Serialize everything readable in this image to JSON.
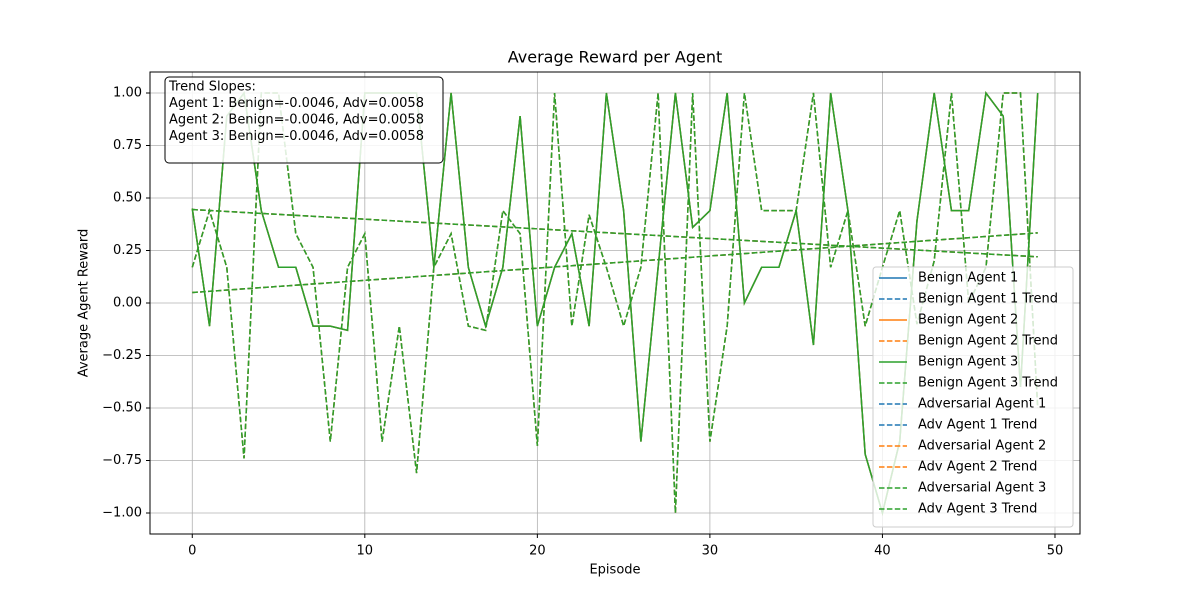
{
  "chart_data": {
    "type": "line",
    "title": "Average Reward per Agent",
    "x_label": "Episode",
    "y_label": "Average Agent Reward",
    "x": [
      0,
      1,
      2,
      3,
      4,
      5,
      6,
      7,
      8,
      9,
      10,
      11,
      12,
      13,
      14,
      15,
      16,
      17,
      18,
      19,
      20,
      21,
      22,
      23,
      24,
      25,
      26,
      27,
      28,
      29,
      30,
      31,
      32,
      33,
      34,
      35,
      36,
      37,
      38,
      39,
      40,
      41,
      42,
      43,
      44,
      45,
      46,
      47,
      48,
      49
    ],
    "xlim": [
      -2.45,
      51.45
    ],
    "xticks": [
      0,
      10,
      20,
      30,
      40,
      50
    ],
    "ylim": [
      -1.1,
      1.1
    ],
    "yticks": [
      {
        "value": -1,
        "label": "−1.00"
      },
      {
        "value": -0.75,
        "label": "−0.75"
      },
      {
        "value": -0.5,
        "label": "−0.50"
      },
      {
        "value": -0.25,
        "label": "−0.25"
      },
      {
        "value": 0,
        "label": "0.00"
      },
      {
        "value": 0.25,
        "label": "0.25"
      },
      {
        "value": 0.5,
        "label": "0.50"
      },
      {
        "value": 0.75,
        "label": "0.75"
      },
      {
        "value": 1,
        "label": "1.00"
      }
    ],
    "grid": true,
    "legend": "lower right",
    "annotation": [
      "Trend Slopes:",
      "Agent 1: Benign=-0.0046, Adv=0.0058",
      "Agent 2: Benign=-0.0046, Adv=0.0058",
      "Agent 3: Benign=-0.0046, Adv=0.0058"
    ],
    "series": [
      {
        "name": "Benign Agent 1",
        "color": "#1f77b4",
        "style": "solid",
        "values": [
          0.45,
          -0.11,
          0.89,
          1.0,
          0.44,
          0.17,
          0.17,
          -0.11,
          -0.11,
          -0.13,
          1.0,
          1.0,
          1.0,
          1.0,
          0.17,
          1.0,
          0.17,
          -0.11,
          0.17,
          0.89,
          -0.11,
          0.17,
          0.33,
          -0.11,
          1.0,
          0.44,
          -0.66,
          0.17,
          1.0,
          0.36,
          0.44,
          1.0,
          0.0,
          0.17,
          0.17,
          0.44,
          -0.2,
          1.0,
          0.44,
          -0.72,
          -1.0,
          -0.66,
          0.39,
          1.0,
          0.44,
          0.44,
          1.0,
          0.89,
          -0.4,
          1.0
        ]
      },
      {
        "name": "Benign Agent 1 Trend",
        "color": "#1f77b4",
        "style": "dashed",
        "x": [
          0,
          49
        ],
        "values": [
          0.445,
          0.22
        ]
      },
      {
        "name": "Benign Agent 2",
        "color": "#ff7f0e",
        "style": "solid",
        "values": [
          0.45,
          -0.11,
          0.89,
          1.0,
          0.44,
          0.17,
          0.17,
          -0.11,
          -0.11,
          -0.13,
          1.0,
          1.0,
          1.0,
          1.0,
          0.17,
          1.0,
          0.17,
          -0.11,
          0.17,
          0.89,
          -0.11,
          0.17,
          0.33,
          -0.11,
          1.0,
          0.44,
          -0.66,
          0.17,
          1.0,
          0.36,
          0.44,
          1.0,
          0.0,
          0.17,
          0.17,
          0.44,
          -0.2,
          1.0,
          0.44,
          -0.72,
          -1.0,
          -0.66,
          0.39,
          1.0,
          0.44,
          0.44,
          1.0,
          0.89,
          -0.4,
          1.0
        ]
      },
      {
        "name": "Benign Agent 2 Trend",
        "color": "#ff7f0e",
        "style": "dashed",
        "x": [
          0,
          49
        ],
        "values": [
          0.445,
          0.22
        ]
      },
      {
        "name": "Benign Agent 3",
        "color": "#2ca02c",
        "style": "solid",
        "values": [
          0.45,
          -0.11,
          0.89,
          1.0,
          0.44,
          0.17,
          0.17,
          -0.11,
          -0.11,
          -0.13,
          1.0,
          1.0,
          1.0,
          1.0,
          0.17,
          1.0,
          0.17,
          -0.11,
          0.17,
          0.89,
          -0.11,
          0.17,
          0.33,
          -0.11,
          1.0,
          0.44,
          -0.66,
          0.17,
          1.0,
          0.36,
          0.44,
          1.0,
          0.0,
          0.17,
          0.17,
          0.44,
          -0.2,
          1.0,
          0.44,
          -0.72,
          -1.0,
          -0.66,
          0.39,
          1.0,
          0.44,
          0.44,
          1.0,
          0.89,
          -0.4,
          1.0
        ]
      },
      {
        "name": "Benign Agent 3 Trend",
        "color": "#2ca02c",
        "style": "dashed",
        "x": [
          0,
          49
        ],
        "values": [
          0.445,
          0.22
        ]
      },
      {
        "name": "Adversarial Agent 1",
        "color": "#1f77b4",
        "style": "dashed",
        "values": [
          0.17,
          0.44,
          0.17,
          -0.74,
          1.0,
          1.0,
          0.33,
          0.17,
          -0.66,
          0.17,
          0.33,
          -0.66,
          -0.11,
          -0.81,
          0.17,
          0.33,
          -0.11,
          -0.13,
          0.44,
          0.33,
          -0.68,
          1.0,
          -0.11,
          0.42,
          0.17,
          -0.11,
          0.17,
          1.0,
          -1.0,
          1.0,
          -0.66,
          -0.11,
          1.0,
          0.44,
          0.44,
          0.44,
          1.0,
          0.17,
          0.44,
          -0.11,
          0.17,
          0.44,
          -0.1,
          0.2,
          1.0,
          0.0,
          0.17,
          1.0,
          1.0,
          -0.5
        ]
      },
      {
        "name": "Adv Agent 1 Trend",
        "color": "#1f77b4",
        "style": "dashed",
        "x": [
          0,
          49
        ],
        "values": [
          0.05,
          0.334
        ]
      },
      {
        "name": "Adversarial Agent 2",
        "color": "#ff7f0e",
        "style": "dashed",
        "values": [
          0.17,
          0.44,
          0.17,
          -0.74,
          1.0,
          1.0,
          0.33,
          0.17,
          -0.66,
          0.17,
          0.33,
          -0.66,
          -0.11,
          -0.81,
          0.17,
          0.33,
          -0.11,
          -0.13,
          0.44,
          0.33,
          -0.68,
          1.0,
          -0.11,
          0.42,
          0.17,
          -0.11,
          0.17,
          1.0,
          -1.0,
          1.0,
          -0.66,
          -0.11,
          1.0,
          0.44,
          0.44,
          0.44,
          1.0,
          0.17,
          0.44,
          -0.11,
          0.17,
          0.44,
          -0.1,
          0.2,
          1.0,
          0.0,
          0.17,
          1.0,
          1.0,
          -0.5
        ]
      },
      {
        "name": "Adv Agent 2 Trend",
        "color": "#ff7f0e",
        "style": "dashed",
        "x": [
          0,
          49
        ],
        "values": [
          0.05,
          0.334
        ]
      },
      {
        "name": "Adversarial Agent 3",
        "color": "#2ca02c",
        "style": "dashed",
        "values": [
          0.17,
          0.44,
          0.17,
          -0.74,
          1.0,
          1.0,
          0.33,
          0.17,
          -0.66,
          0.17,
          0.33,
          -0.66,
          -0.11,
          -0.81,
          0.17,
          0.33,
          -0.11,
          -0.13,
          0.44,
          0.33,
          -0.68,
          1.0,
          -0.11,
          0.42,
          0.17,
          -0.11,
          0.17,
          1.0,
          -1.0,
          1.0,
          -0.66,
          -0.11,
          1.0,
          0.44,
          0.44,
          0.44,
          1.0,
          0.17,
          0.44,
          -0.11,
          0.17,
          0.44,
          -0.1,
          0.2,
          1.0,
          0.0,
          0.17,
          1.0,
          1.0,
          -0.5
        ]
      },
      {
        "name": "Adv Agent 3 Trend",
        "color": "#2ca02c",
        "style": "dashed",
        "x": [
          0,
          49
        ],
        "values": [
          0.05,
          0.334
        ]
      }
    ]
  }
}
